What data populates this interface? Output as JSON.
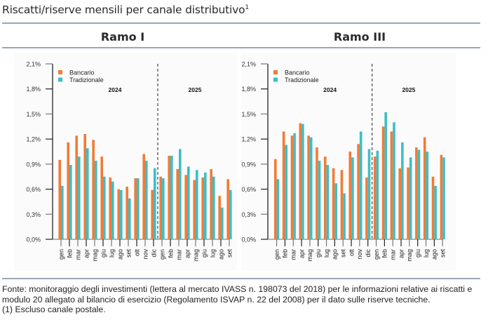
{
  "page": {
    "title": "Riscatti/riserve mensili per canale distributivo",
    "title_footnote_mark": "1",
    "footer": {
      "source": "Fonte: monitoraggio degli investimenti (lettera al mercato IVASS n. 198073 del 2018) per le informazioni relative ai riscatti e modulo 20 allegato al bilancio di esercizio (Regolamento ISVAP n. 22 del 2008) per il dato sulle riserve tecniche.",
      "note": "(1) Escluso canale postale."
    }
  },
  "colors": {
    "bancario": "#F07C38",
    "tradizionale": "#3CBEC8",
    "rule": "#9aa5b8"
  },
  "chart_data": [
    {
      "type": "bar",
      "title": "Ramo I",
      "xlabel": "",
      "ylabel": "",
      "ylim": [
        0,
        2.1
      ],
      "yticks": [
        "0,0%",
        "0,3%",
        "0,6%",
        "0,9%",
        "1,2%",
        "1,5%",
        "1,8%",
        "2,1%"
      ],
      "ytick_values": [
        0,
        0.3,
        0.6,
        0.9,
        1.2,
        1.5,
        1.8,
        2.1
      ],
      "grid": false,
      "legend": "top-left",
      "year_labels": [
        "2024",
        "2025"
      ],
      "year_split_after_index": 11,
      "categories": [
        "gen",
        "feb",
        "mar",
        "apr",
        "mag",
        "giu",
        "lug",
        "ago",
        "set",
        "ott",
        "nov",
        "dic",
        "gen",
        "feb",
        "mar",
        "apr",
        "mag",
        "giu",
        "lug",
        "ago",
        "set"
      ],
      "series": [
        {
          "name": "Bancario",
          "values": [
            0.95,
            1.16,
            1.24,
            1.26,
            1.19,
            0.99,
            0.74,
            0.6,
            0.63,
            0.73,
            1.02,
            0.59,
            0.75,
            1.0,
            0.84,
            0.77,
            0.71,
            0.74,
            0.84,
            0.52,
            0.72
          ]
        },
        {
          "name": "Tradizionale",
          "values": [
            0.64,
            0.89,
            0.99,
            1.09,
            0.94,
            0.75,
            0.69,
            0.59,
            0.49,
            0.73,
            0.94,
            0.85,
            0.73,
            1.0,
            1.08,
            0.87,
            0.83,
            0.8,
            0.75,
            0.38,
            0.59
          ]
        }
      ]
    },
    {
      "type": "bar",
      "title": "Ramo III",
      "xlabel": "",
      "ylabel": "",
      "ylim": [
        0,
        2.1
      ],
      "yticks": [
        "0,0%",
        "0,3%",
        "0,6%",
        "0,9%",
        "1,2%",
        "1,5%",
        "1,8%",
        "2,1%"
      ],
      "ytick_values": [
        0,
        0.3,
        0.6,
        0.9,
        1.2,
        1.5,
        1.8,
        2.1
      ],
      "grid": false,
      "legend": "top-left",
      "year_labels": [
        "2024",
        "2025"
      ],
      "year_split_after_index": 11,
      "categories": [
        "gen",
        "feb",
        "mar",
        "apr",
        "mag",
        "giu",
        "lug",
        "ago",
        "set",
        "ott",
        "nov",
        "dic",
        "gen",
        "feb",
        "mar",
        "apr",
        "mag",
        "giu",
        "lug",
        "ago",
        "set"
      ],
      "series": [
        {
          "name": "Bancario",
          "values": [
            0.96,
            1.29,
            1.24,
            1.39,
            1.24,
            1.1,
            0.99,
            0.85,
            0.83,
            1.05,
            1.14,
            0.74,
            0.99,
            1.35,
            1.29,
            0.85,
            0.86,
            1.1,
            1.22,
            0.75,
            1.01
          ]
        },
        {
          "name": "Tradizionale",
          "values": [
            0.72,
            1.13,
            1.27,
            1.38,
            1.22,
            0.94,
            0.89,
            0.67,
            0.55,
            0.98,
            1.29,
            1.08,
            1.06,
            1.52,
            1.4,
            1.16,
            0.98,
            1.07,
            1.05,
            0.64,
            0.98
          ]
        }
      ]
    }
  ]
}
